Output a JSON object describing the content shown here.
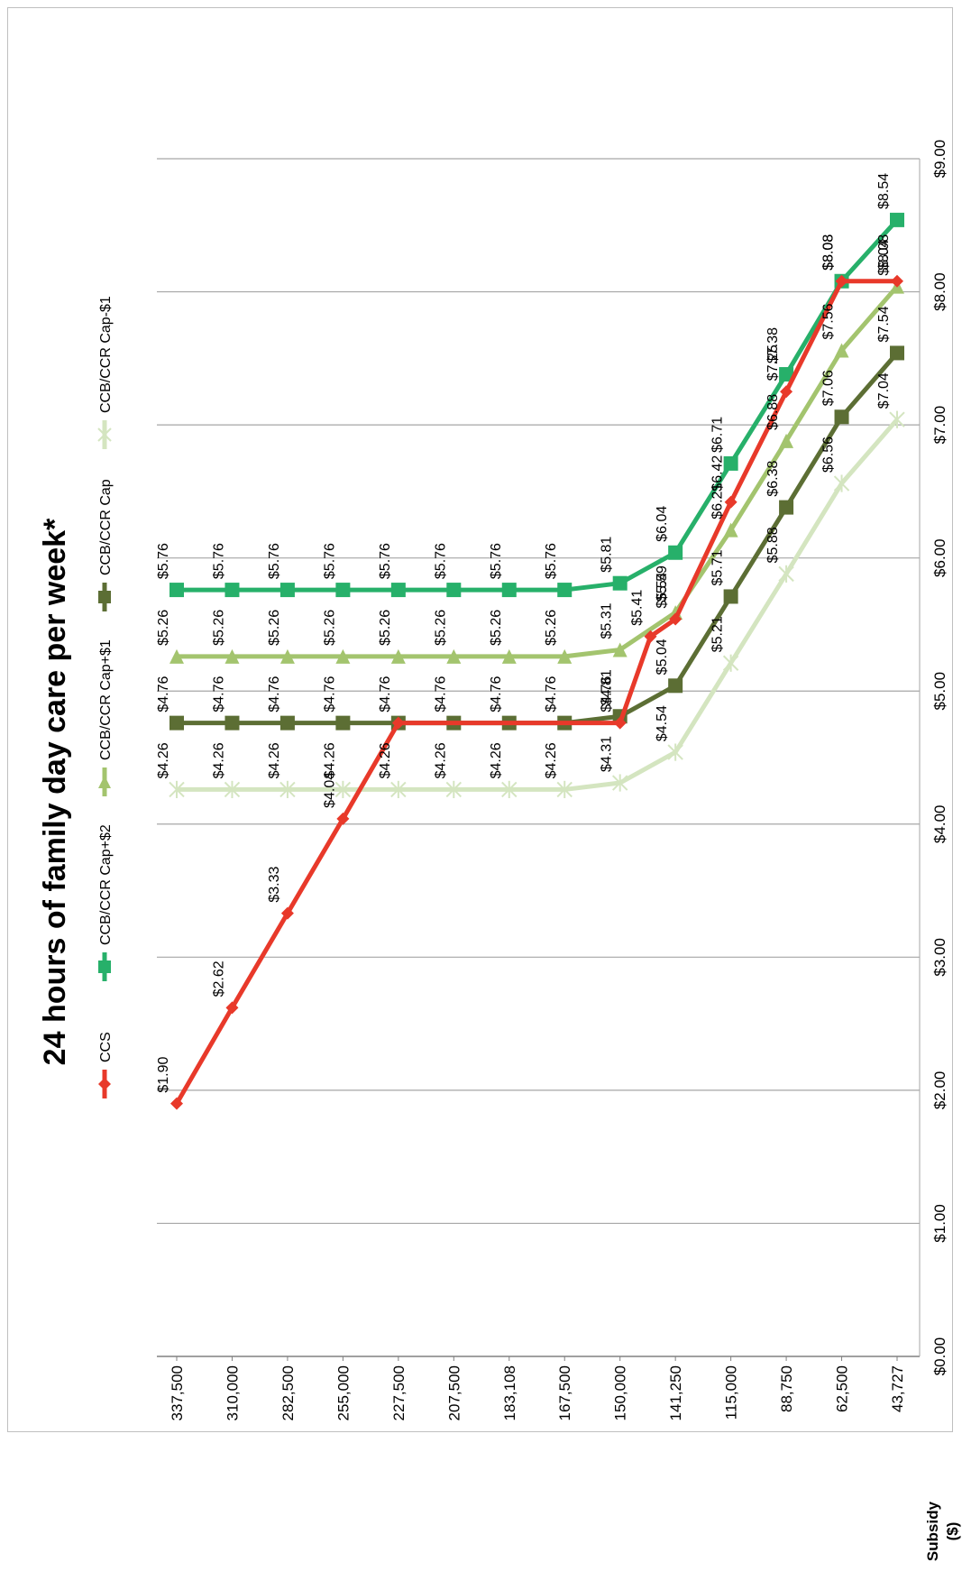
{
  "chart_data": {
    "type": "line",
    "title": "24 hours of family day care per week*",
    "ylabel": "Subsidy\n($)",
    "xlabel": "",
    "ylim": [
      0,
      9
    ],
    "y_ticks": [
      "$0.00",
      "$1.00",
      "$2.00",
      "$3.00",
      "$4.00",
      "$5.00",
      "$6.00",
      "$7.00",
      "$8.00",
      "$9.00"
    ],
    "categories": [
      "43,727",
      "62,500",
      "88,750",
      "115,000",
      "141,250",
      "150,000",
      "167,500",
      "183,108",
      "207,500",
      "227,500",
      "255,000",
      "282,500",
      "310,000",
      "337,500"
    ],
    "grid": true,
    "legend_position": "top",
    "series": [
      {
        "name": "CCS",
        "color": "#e8392a",
        "marker": "diamond",
        "x": [
          0,
          1,
          2,
          3,
          4,
          4.45,
          5,
          9,
          10,
          11,
          12,
          13
        ],
        "values": [
          8.08,
          8.08,
          7.25,
          6.42,
          5.54,
          5.41,
          4.76,
          4.76,
          4.04,
          3.33,
          2.62,
          1.9
        ],
        "labels": [
          "$8.08",
          "$8.08",
          "$7.25",
          "$6.42",
          "$5.54",
          "$5.41",
          "$4.76",
          "",
          "$4.04",
          "$3.33",
          "$2.62",
          "$1.90"
        ]
      },
      {
        "name": "CCB/CCR Cap+$2",
        "color": "#27b06a",
        "marker": "square",
        "x": [
          0,
          1,
          2,
          3,
          4,
          5,
          6,
          7,
          8,
          9,
          10,
          11,
          12,
          13
        ],
        "values": [
          8.54,
          8.08,
          7.38,
          6.71,
          6.04,
          5.81,
          5.76,
          5.76,
          5.76,
          5.76,
          5.76,
          5.76,
          5.76,
          5.76
        ],
        "labels": [
          "$8.54",
          "$8.08",
          "$7.38",
          "$6.71",
          "$6.04",
          "$5.81",
          "$5.76",
          "$5.76",
          "$5.76",
          "$5.76",
          "$5.76",
          "$5.76",
          "$5.76",
          "$5.76"
        ]
      },
      {
        "name": "CCB/CCR Cap+$1",
        "color": "#a3c46e",
        "marker": "triangle",
        "x": [
          0,
          1,
          2,
          3,
          4,
          5,
          6,
          7,
          8,
          9,
          10,
          11,
          12,
          13
        ],
        "values": [
          8.04,
          7.56,
          6.88,
          6.21,
          5.59,
          5.31,
          5.26,
          5.26,
          5.26,
          5.26,
          5.26,
          5.26,
          5.26,
          5.26
        ],
        "labels": [
          "$8.04",
          "$7.56",
          "$6.88",
          "$6.21",
          "$5.59",
          "$5.31",
          "$5.26",
          "$5.26",
          "$5.26",
          "$5.26",
          "$5.26",
          "$5.26",
          "$5.26",
          "$5.26"
        ]
      },
      {
        "name": "CCB/CCR Cap",
        "color": "#5c6e34",
        "marker": "square",
        "x": [
          0,
          1,
          2,
          3,
          4,
          5,
          6,
          7,
          8,
          9,
          10,
          11,
          12,
          13
        ],
        "values": [
          7.54,
          7.06,
          6.38,
          5.71,
          5.04,
          4.81,
          4.76,
          4.76,
          4.76,
          4.76,
          4.76,
          4.76,
          4.76,
          4.76
        ],
        "labels": [
          "$7.54",
          "$7.06",
          "$6.38",
          "$5.71",
          "$5.04",
          "$4.81",
          "$4.76",
          "$4.76",
          "$4.76",
          "$4.76",
          "$4.76",
          "$4.76",
          "$4.76",
          "$4.76"
        ]
      },
      {
        "name": "CCB/CCR Cap-$1",
        "color": "#d4e5c0",
        "marker": "star",
        "x": [
          0,
          1,
          2,
          3,
          4,
          5,
          6,
          7,
          8,
          9,
          10,
          11,
          12,
          13
        ],
        "values": [
          7.04,
          6.56,
          5.88,
          5.21,
          4.54,
          4.31,
          4.26,
          4.26,
          4.26,
          4.26,
          4.26,
          4.26,
          4.26,
          4.26
        ],
        "labels": [
          "$7.04",
          "$6.56",
          "$5.88",
          "$5.21",
          "$4.54",
          "$4.31",
          "$4.26",
          "$4.26",
          "$4.26",
          "$4.26",
          "$4.26",
          "$4.26",
          "$4.26",
          "$4.26"
        ]
      }
    ]
  }
}
